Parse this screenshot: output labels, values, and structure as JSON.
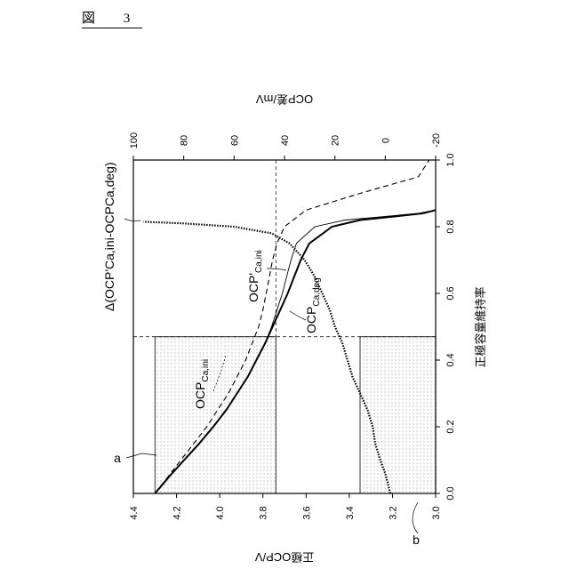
{
  "figure_label": "図 3",
  "chart_data": {
    "type": "line",
    "orientation": "rotated-90-ccw",
    "xlabel": "正極容量維持率",
    "xlim": [
      0.0,
      1.0
    ],
    "xticks": [
      "0.0",
      "0.2",
      "0.4",
      "0.6",
      "0.8",
      "1.0"
    ],
    "ylabel_left": "正極OCP/V",
    "ylim_left": [
      3.0,
      4.4
    ],
    "yticks_left": [
      "3.0",
      "3.2",
      "3.4",
      "3.6",
      "3.8",
      "4.0",
      "4.2",
      "4.4"
    ],
    "ylabel_right": "OCP差/mV",
    "ylim_right": [
      -20,
      100
    ],
    "yticks_right": [
      "-20",
      "0",
      "20",
      "40",
      "60",
      "80",
      "100"
    ],
    "annotations": {
      "a": "a",
      "b": "b",
      "delta_label": "Δ(OCP'Ca,ini-OCPCa,deg)",
      "ocp_ca_ini": "OCPCa,ini",
      "ocp_prime_ca_ini": "OCP'Ca,ini",
      "ocp_ca_deg": "OCPCa,deg"
    },
    "reference_lines": {
      "x_ref": 0.47,
      "y_left_a": 4.3,
      "y_left_mid": 3.74,
      "y_left_low": 3.35
    },
    "series": [
      {
        "key": "ocp_ca_ini",
        "style": "dashed",
        "axis": "left",
        "x": [
          0.0,
          0.05,
          0.1,
          0.15,
          0.2,
          0.25,
          0.3,
          0.35,
          0.4,
          0.45,
          0.5,
          0.55,
          0.6,
          0.65,
          0.7,
          0.75,
          0.8,
          0.85,
          0.9,
          0.95,
          1.0
        ],
        "y": [
          4.3,
          4.24,
          4.18,
          4.12,
          4.06,
          4.01,
          3.96,
          3.92,
          3.88,
          3.85,
          3.82,
          3.8,
          3.785,
          3.77,
          3.755,
          3.735,
          3.7,
          3.6,
          3.35,
          3.08,
          3.03
        ]
      },
      {
        "key": "ocp_prime_ca_ini",
        "style": "solid-thin",
        "axis": "left",
        "x": [
          0.0,
          0.05,
          0.1,
          0.15,
          0.2,
          0.25,
          0.3,
          0.35,
          0.4,
          0.45,
          0.5,
          0.55,
          0.6,
          0.65,
          0.7,
          0.75,
          0.8,
          0.82,
          0.83,
          0.84,
          0.85
        ],
        "y": [
          4.3,
          4.235,
          4.165,
          4.095,
          4.03,
          3.97,
          3.92,
          3.87,
          3.83,
          3.79,
          3.76,
          3.735,
          3.71,
          3.69,
          3.67,
          3.645,
          3.56,
          3.42,
          3.25,
          3.08,
          3.0
        ]
      },
      {
        "key": "ocp_ca_deg",
        "style": "solid-thick",
        "axis": "left",
        "x": [
          0.0,
          0.05,
          0.1,
          0.15,
          0.2,
          0.25,
          0.3,
          0.35,
          0.4,
          0.45,
          0.5,
          0.55,
          0.6,
          0.65,
          0.7,
          0.75,
          0.8,
          0.82,
          0.83,
          0.84,
          0.85
        ],
        "y": [
          4.3,
          4.235,
          4.165,
          4.095,
          4.03,
          3.97,
          3.92,
          3.87,
          3.83,
          3.79,
          3.755,
          3.72,
          3.685,
          3.655,
          3.625,
          3.585,
          3.48,
          3.35,
          3.2,
          3.06,
          3.0
        ]
      },
      {
        "key": "delta",
        "style": "dotted-noisy",
        "axis": "right",
        "x": [
          0.0,
          0.03,
          0.06,
          0.1,
          0.15,
          0.2,
          0.25,
          0.3,
          0.35,
          0.4,
          0.45,
          0.5,
          0.55,
          0.6,
          0.65,
          0.7,
          0.75,
          0.78,
          0.8,
          0.81,
          0.815
        ],
        "y": [
          -2,
          -1,
          0,
          2,
          4,
          5,
          7,
          10,
          13,
          15,
          17,
          20,
          22,
          25,
          28,
          32,
          38,
          45,
          60,
          80,
          96
        ]
      }
    ]
  }
}
